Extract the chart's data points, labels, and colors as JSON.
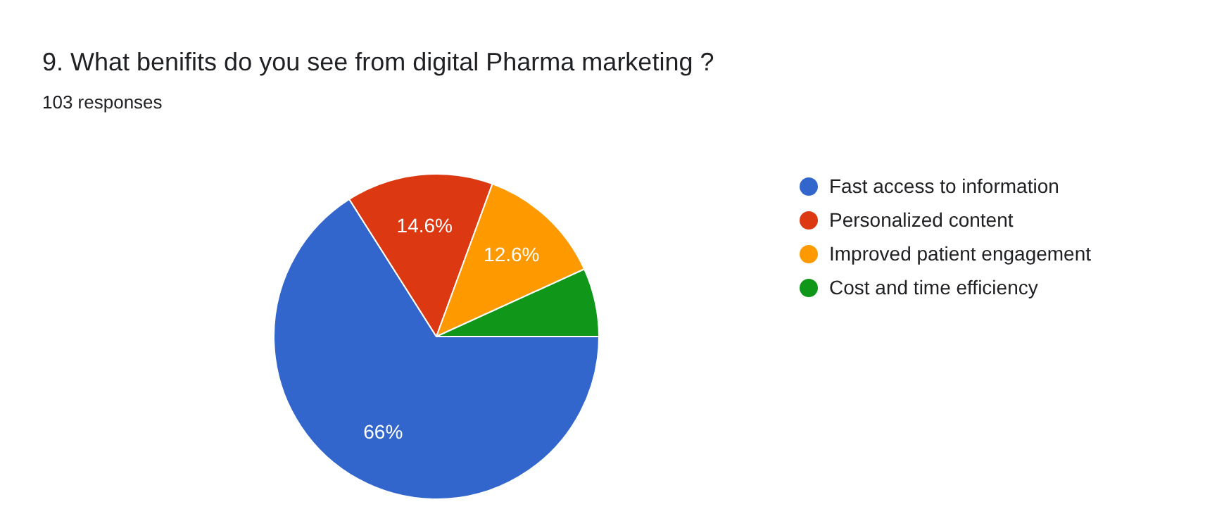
{
  "chart_data": {
    "type": "pie",
    "title": "9. What benifits do you see from digital Pharma marketing ?",
    "subtitle": "103 responses",
    "categories": [
      "Fast access to information",
      "Personalized content",
      "Improved patient engagement",
      "Cost and time efficiency"
    ],
    "values": [
      66,
      14.6,
      12.6,
      6.8
    ],
    "colors": [
      "#3366cc",
      "#dc3912",
      "#ff9900",
      "#109618"
    ],
    "value_labels": [
      "66%",
      "14.6%",
      "12.6%",
      null
    ],
    "legend": "right"
  }
}
